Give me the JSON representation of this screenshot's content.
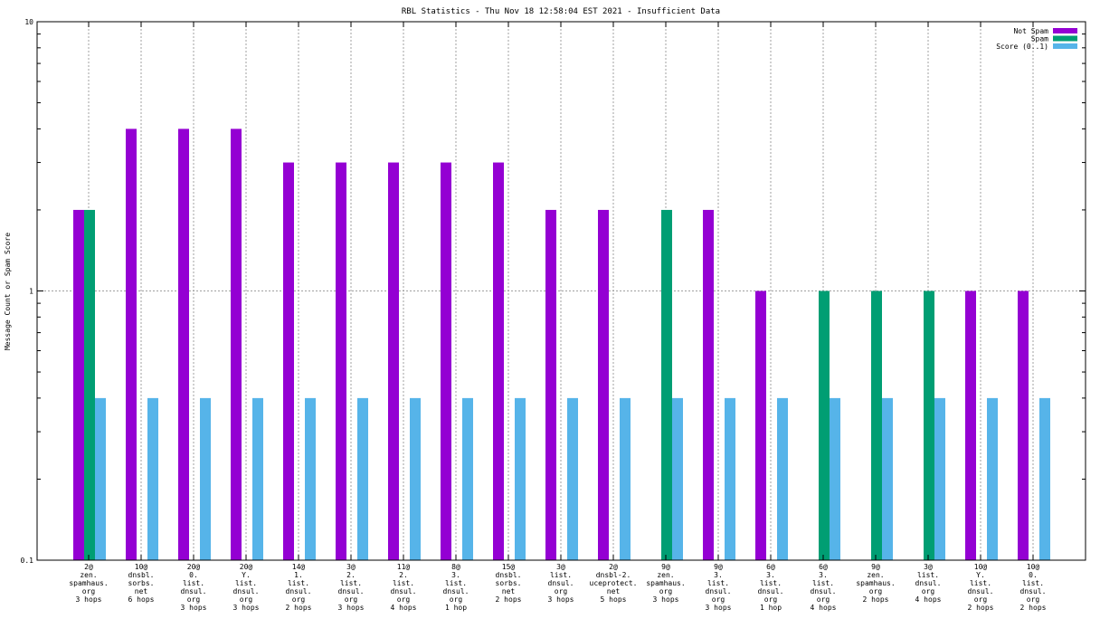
{
  "chart_data": {
    "type": "bar",
    "title": "RBL Statistics - Thu Nov 18 12:58:04 EST 2021 - Insufficient Data",
    "xlabel": "",
    "ylabel": "Message Count or Spam Score",
    "yscale": "log",
    "ylim": [
      0.1,
      10
    ],
    "yticks": [
      {
        "value": 0.1,
        "label": "0.1"
      },
      {
        "value": 1,
        "label": "1"
      },
      {
        "value": 10,
        "label": "10"
      }
    ],
    "grid": true,
    "legend_position": "top-right",
    "categories": [
      [
        "2@",
        "zen.",
        "spamhaus.",
        "org",
        "3 hops"
      ],
      [
        "10@",
        "dnsbl.",
        "sorbs.",
        "net",
        "6 hops"
      ],
      [
        "20@",
        "0.",
        "list.",
        "dnsul.",
        "org",
        "3 hops"
      ],
      [
        "20@",
        "Y.",
        "list.",
        "dnsul.",
        "org",
        "3 hops"
      ],
      [
        "14@",
        "1.",
        "list.",
        "dnsul.",
        "org",
        "2 hops"
      ],
      [
        "3@",
        "2.",
        "list.",
        "dnsul.",
        "org",
        "3 hops"
      ],
      [
        "11@",
        "2.",
        "list.",
        "dnsul.",
        "org",
        "4 hops"
      ],
      [
        "8@",
        "3.",
        "list.",
        "dnsul.",
        "org",
        "1 hop"
      ],
      [
        "15@",
        "dnsbl.",
        "sorbs.",
        "net",
        "2 hops"
      ],
      [
        "3@",
        "list.",
        "dnsul.",
        "org",
        "3 hops"
      ],
      [
        "2@",
        "dnsbl-2.",
        "uceprotect.",
        "net",
        "5 hops"
      ],
      [
        "9@",
        "zen.",
        "spamhaus.",
        "org",
        "3 hops"
      ],
      [
        "9@",
        "3.",
        "list.",
        "dnsul.",
        "org",
        "3 hops"
      ],
      [
        "6@",
        "3.",
        "list.",
        "dnsul.",
        "org",
        "1 hop"
      ],
      [
        "6@",
        "3.",
        "list.",
        "dnsul.",
        "org",
        "4 hops"
      ],
      [
        "9@",
        "zen.",
        "spamhaus.",
        "org",
        "2 hops"
      ],
      [
        "3@",
        "list.",
        "dnsul.",
        "org",
        "4 hops"
      ],
      [
        "10@",
        "Y.",
        "list.",
        "dnsul.",
        "org",
        "2 hops"
      ],
      [
        "10@",
        "0.",
        "list.",
        "dnsul.",
        "org",
        "2 hops"
      ]
    ],
    "series": [
      {
        "name": "Not Spam",
        "color": "#9400d3",
        "values": [
          2,
          4,
          4,
          4,
          3,
          3,
          3,
          3,
          3,
          2,
          2,
          null,
          2,
          1,
          null,
          null,
          null,
          1,
          1
        ]
      },
      {
        "name": "Spam",
        "color": "#009e73",
        "values": [
          2,
          null,
          null,
          null,
          null,
          null,
          null,
          null,
          null,
          null,
          null,
          2,
          null,
          null,
          1,
          1,
          1,
          null,
          null
        ]
      },
      {
        "name": "Score (0..1)",
        "color": "#56b4e9",
        "values": [
          0.4,
          0.4,
          0.4,
          0.4,
          0.4,
          0.4,
          0.4,
          0.4,
          0.4,
          0.4,
          0.4,
          0.4,
          0.4,
          0.4,
          0.4,
          0.4,
          0.4,
          0.4,
          0.4
        ]
      }
    ]
  }
}
